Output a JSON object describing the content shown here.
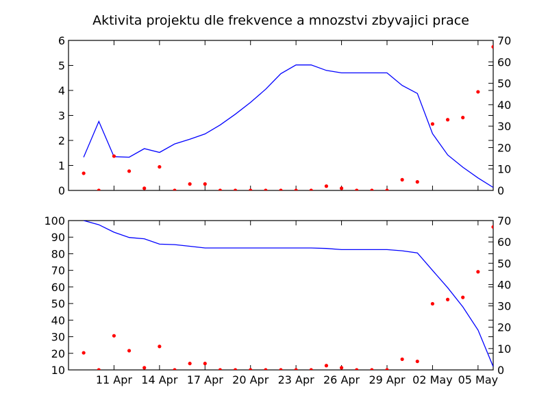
{
  "figure": {
    "title": "Aktivita projektu dle frekvence a mnozstvi zbyvajici prace"
  },
  "colors": {
    "line": "#0000ff",
    "points": "#ff0000",
    "axes": "#000000",
    "background": "#ffffff"
  },
  "chart_data": [
    {
      "type": "line",
      "panel": "top",
      "title": "",
      "xlabel": "",
      "ylabel_left": "",
      "ylabel_right": "",
      "x_day_range": [
        8,
        36
      ],
      "left_ylim": [
        0,
        6
      ],
      "left_yticks": [
        0,
        1,
        2,
        3,
        4,
        5,
        6
      ],
      "right_ylim": [
        0,
        70
      ],
      "right_yticks": [
        0,
        10,
        20,
        30,
        40,
        50,
        60,
        70
      ],
      "xtick_labels": [],
      "grid": false,
      "legend": "none",
      "series": [
        {
          "axis": "left",
          "style": "line",
          "points": [
            {
              "date": "2014-04-09",
              "value": 1.33
            },
            {
              "date": "2014-04-10",
              "value": 2.76
            },
            {
              "date": "2014-04-11",
              "value": 1.35
            },
            {
              "date": "2014-04-12",
              "value": 1.33
            },
            {
              "date": "2014-04-13",
              "value": 1.67
            },
            {
              "date": "2014-04-14",
              "value": 1.52
            },
            {
              "date": "2014-04-15",
              "value": 1.86
            },
            {
              "date": "2014-04-16",
              "value": 2.05
            },
            {
              "date": "2014-04-17",
              "value": 2.26
            },
            {
              "date": "2014-04-18",
              "value": 2.62
            },
            {
              "date": "2014-04-19",
              "value": 3.05
            },
            {
              "date": "2014-04-20",
              "value": 3.52
            },
            {
              "date": "2014-04-21",
              "value": 4.05
            },
            {
              "date": "2014-04-22",
              "value": 4.67
            },
            {
              "date": "2014-04-23",
              "value": 5.02
            },
            {
              "date": "2014-04-24",
              "value": 5.02
            },
            {
              "date": "2014-04-25",
              "value": 4.8
            },
            {
              "date": "2014-04-26",
              "value": 4.7
            },
            {
              "date": "2014-04-27",
              "value": 4.7
            },
            {
              "date": "2014-04-28",
              "value": 4.7
            },
            {
              "date": "2014-04-29",
              "value": 4.7
            },
            {
              "date": "2014-04-30",
              "value": 4.2
            },
            {
              "date": "2014-05-01",
              "value": 3.88
            },
            {
              "date": "2014-05-02",
              "value": 2.27
            },
            {
              "date": "2014-05-03",
              "value": 1.42
            },
            {
              "date": "2014-05-04",
              "value": 0.93
            },
            {
              "date": "2014-05-05",
              "value": 0.5
            },
            {
              "date": "2014-05-06",
              "value": 0.12
            }
          ]
        },
        {
          "axis": "right",
          "style": "points",
          "points": [
            {
              "date": "2014-04-09",
              "value": 8
            },
            {
              "date": "2014-04-10",
              "value": 0
            },
            {
              "date": "2014-04-11",
              "value": 16
            },
            {
              "date": "2014-04-12",
              "value": 9
            },
            {
              "date": "2014-04-13",
              "value": 1
            },
            {
              "date": "2014-04-14",
              "value": 11
            },
            {
              "date": "2014-04-15",
              "value": 0
            },
            {
              "date": "2014-04-16",
              "value": 3
            },
            {
              "date": "2014-04-17",
              "value": 3
            },
            {
              "date": "2014-04-18",
              "value": 0
            },
            {
              "date": "2014-04-19",
              "value": 0
            },
            {
              "date": "2014-04-20",
              "value": 0
            },
            {
              "date": "2014-04-21",
              "value": 0
            },
            {
              "date": "2014-04-22",
              "value": 0
            },
            {
              "date": "2014-04-23",
              "value": 0
            },
            {
              "date": "2014-04-24",
              "value": 0
            },
            {
              "date": "2014-04-25",
              "value": 2
            },
            {
              "date": "2014-04-26",
              "value": 1
            },
            {
              "date": "2014-04-27",
              "value": 0
            },
            {
              "date": "2014-04-28",
              "value": 0
            },
            {
              "date": "2014-04-29",
              "value": 0
            },
            {
              "date": "2014-04-30",
              "value": 5
            },
            {
              "date": "2014-05-01",
              "value": 4
            },
            {
              "date": "2014-05-02",
              "value": 31
            },
            {
              "date": "2014-05-03",
              "value": 33
            },
            {
              "date": "2014-05-04",
              "value": 34
            },
            {
              "date": "2014-05-05",
              "value": 46
            },
            {
              "date": "2014-05-06",
              "value": 67
            }
          ]
        }
      ]
    },
    {
      "type": "line",
      "panel": "bottom",
      "title": "",
      "xlabel": "",
      "ylabel_left": "",
      "ylabel_right": "",
      "x_day_range": [
        8,
        36
      ],
      "left_ylim": [
        10,
        100
      ],
      "left_yticks": [
        10,
        20,
        30,
        40,
        50,
        60,
        70,
        80,
        90,
        100
      ],
      "right_ylim": [
        0,
        70
      ],
      "right_yticks": [
        0,
        10,
        20,
        30,
        40,
        50,
        60,
        70
      ],
      "xtick_labels": [
        {
          "day": 11,
          "label": "11 Apr"
        },
        {
          "day": 14,
          "label": "14 Apr"
        },
        {
          "day": 17,
          "label": "17 Apr"
        },
        {
          "day": 20,
          "label": "20 Apr"
        },
        {
          "day": 23,
          "label": "23 Apr"
        },
        {
          "day": 26,
          "label": "26 Apr"
        },
        {
          "day": 29,
          "label": "29 Apr"
        },
        {
          "day": 32,
          "label": "02 May"
        },
        {
          "day": 35,
          "label": "05 May"
        }
      ],
      "grid": false,
      "legend": "none",
      "series": [
        {
          "axis": "left",
          "style": "line",
          "points": [
            {
              "date": "2014-04-09",
              "value": 100
            },
            {
              "date": "2014-04-10",
              "value": 97.5
            },
            {
              "date": "2014-04-11",
              "value": 93
            },
            {
              "date": "2014-04-12",
              "value": 89.8
            },
            {
              "date": "2014-04-13",
              "value": 89
            },
            {
              "date": "2014-04-14",
              "value": 85.8
            },
            {
              "date": "2014-04-15",
              "value": 85.5
            },
            {
              "date": "2014-04-16",
              "value": 84.5
            },
            {
              "date": "2014-04-17",
              "value": 83.5
            },
            {
              "date": "2014-04-18",
              "value": 83.5
            },
            {
              "date": "2014-04-19",
              "value": 83.5
            },
            {
              "date": "2014-04-20",
              "value": 83.5
            },
            {
              "date": "2014-04-21",
              "value": 83.5
            },
            {
              "date": "2014-04-22",
              "value": 83.5
            },
            {
              "date": "2014-04-23",
              "value": 83.5
            },
            {
              "date": "2014-04-24",
              "value": 83.5
            },
            {
              "date": "2014-04-25",
              "value": 83.2
            },
            {
              "date": "2014-04-26",
              "value": 82.5
            },
            {
              "date": "2014-04-27",
              "value": 82.5
            },
            {
              "date": "2014-04-28",
              "value": 82.5
            },
            {
              "date": "2014-04-29",
              "value": 82.5
            },
            {
              "date": "2014-04-30",
              "value": 81.8
            },
            {
              "date": "2014-05-01",
              "value": 80.5
            },
            {
              "date": "2014-05-02",
              "value": 70
            },
            {
              "date": "2014-05-03",
              "value": 59.5
            },
            {
              "date": "2014-05-04",
              "value": 48
            },
            {
              "date": "2014-05-05",
              "value": 34
            },
            {
              "date": "2014-05-06",
              "value": 12
            }
          ]
        },
        {
          "axis": "right",
          "style": "points",
          "points": [
            {
              "date": "2014-04-09",
              "value": 8
            },
            {
              "date": "2014-04-10",
              "value": 0
            },
            {
              "date": "2014-04-11",
              "value": 16
            },
            {
              "date": "2014-04-12",
              "value": 9
            },
            {
              "date": "2014-04-13",
              "value": 1
            },
            {
              "date": "2014-04-14",
              "value": 11
            },
            {
              "date": "2014-04-15",
              "value": 0
            },
            {
              "date": "2014-04-16",
              "value": 3
            },
            {
              "date": "2014-04-17",
              "value": 3
            },
            {
              "date": "2014-04-18",
              "value": 0
            },
            {
              "date": "2014-04-19",
              "value": 0
            },
            {
              "date": "2014-04-20",
              "value": 0
            },
            {
              "date": "2014-04-21",
              "value": 0
            },
            {
              "date": "2014-04-22",
              "value": 0
            },
            {
              "date": "2014-04-23",
              "value": 0
            },
            {
              "date": "2014-04-24",
              "value": 0
            },
            {
              "date": "2014-04-25",
              "value": 2
            },
            {
              "date": "2014-04-26",
              "value": 1
            },
            {
              "date": "2014-04-27",
              "value": 0
            },
            {
              "date": "2014-04-28",
              "value": 0
            },
            {
              "date": "2014-04-29",
              "value": 0
            },
            {
              "date": "2014-04-30",
              "value": 5
            },
            {
              "date": "2014-05-01",
              "value": 4
            },
            {
              "date": "2014-05-02",
              "value": 31
            },
            {
              "date": "2014-05-03",
              "value": 33
            },
            {
              "date": "2014-05-04",
              "value": 34
            },
            {
              "date": "2014-05-05",
              "value": 46
            },
            {
              "date": "2014-05-06",
              "value": 67
            }
          ]
        }
      ]
    }
  ]
}
